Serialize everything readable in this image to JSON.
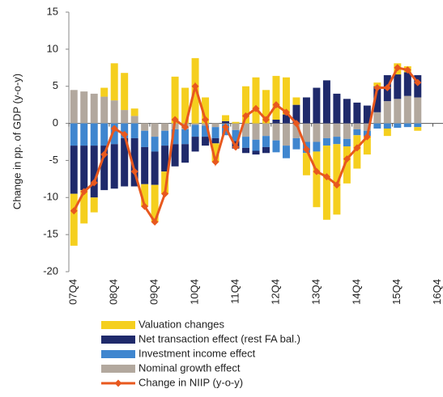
{
  "chart_data": {
    "type": "bar",
    "y_label": "Change in pp. of GDP (y-o-y)",
    "categories": [
      "07Q4",
      null,
      null,
      null,
      "08Q4",
      null,
      null,
      null,
      "09Q4",
      null,
      null,
      null,
      "10Q4",
      null,
      null,
      null,
      "11Q4",
      null,
      null,
      null,
      "12Q4",
      null,
      null,
      null,
      "13Q4",
      null,
      null,
      null,
      "14Q4",
      null,
      null,
      null,
      "15Q4",
      null,
      null,
      null,
      "16Q4"
    ],
    "ylim": [
      -20,
      15
    ],
    "yticks": [
      -20,
      -15,
      -10,
      -5,
      0,
      5,
      10,
      15
    ],
    "legend": "bottom",
    "series": [
      {
        "name": "Valuation changes",
        "type": "bar",
        "color": "#f5cf1e",
        "values": [
          -7,
          -4.5,
          -2,
          1.2,
          5,
          5,
          1,
          -3,
          -5,
          -3,
          6.3,
          4.8,
          8.8,
          3.5,
          -2.5,
          0.8,
          0.2,
          5,
          6.2,
          4.5,
          5.9,
          5,
          1,
          -3,
          -7.5,
          -10,
          -9.5,
          -5,
          -4.5,
          -2.5,
          0.5,
          -1,
          1.5,
          0.8,
          -0.5,
          null,
          null
        ]
      },
      {
        "name": "Net transaction effect (rest FA bal.)",
        "type": "bar",
        "color": "#1f2a6b",
        "values": [
          -6.5,
          -6,
          -7,
          -6,
          -6,
          -6.5,
          -6.5,
          -5,
          -4.5,
          -3.5,
          -3,
          -2.5,
          -2,
          -1.2,
          -0.7,
          0.3,
          -1,
          -0.7,
          -0.5,
          -0.8,
          0.5,
          1.2,
          2.5,
          3.5,
          4.8,
          5.8,
          4,
          3.3,
          2.8,
          2.4,
          3.5,
          3.5,
          3.3,
          3.2,
          3,
          null,
          null
        ]
      },
      {
        "name": "Investment income effect",
        "type": "bar",
        "color": "#3f86cf",
        "values": [
          -3,
          -3,
          -3,
          -3,
          -2.8,
          -2,
          -2,
          -2.2,
          -2,
          -2,
          -2,
          -2,
          -1.6,
          -1.5,
          -1.5,
          -1.5,
          -1.5,
          -1.5,
          -1.5,
          -1.5,
          -1.6,
          -1.7,
          -1.5,
          -1.5,
          -1.3,
          -1,
          -1,
          -1,
          -0.8,
          -0.7,
          -0.7,
          -0.7,
          -0.6,
          -0.5,
          -0.5,
          null,
          null
        ]
      },
      {
        "name": "Nominal growth effect",
        "type": "bar",
        "color": "#b2a89e",
        "values": [
          4.5,
          4.3,
          4,
          3.6,
          3.1,
          1.8,
          1,
          -1,
          -1.8,
          -1,
          -0.8,
          -0.8,
          -0.2,
          -0.3,
          -0.5,
          -0.1,
          -0.9,
          -1.8,
          -2.2,
          -1.7,
          -2.3,
          -3,
          -2,
          -2.5,
          -2.5,
          -2,
          -1.8,
          -2.1,
          -0.8,
          -1,
          1.5,
          3,
          3.3,
          3.7,
          3.5,
          null,
          null
        ]
      },
      {
        "name": "Change in NIIP (y-o-y)",
        "type": "line",
        "color": "#e8581e",
        "values": [
          -11.8,
          -9.2,
          -8,
          -4.2,
          -0.7,
          -1.5,
          -6.5,
          -11.2,
          -13.3,
          -9.5,
          0.5,
          -0.5,
          5,
          0.5,
          -5.2,
          -0.5,
          -3.2,
          1,
          2,
          0.5,
          2.5,
          1.5,
          0,
          -3.5,
          -6.5,
          -7.2,
          -8.3,
          -4.8,
          -3.3,
          -1.8,
          4.8,
          4.8,
          7.5,
          7.2,
          5.5,
          null,
          null
        ]
      }
    ]
  }
}
